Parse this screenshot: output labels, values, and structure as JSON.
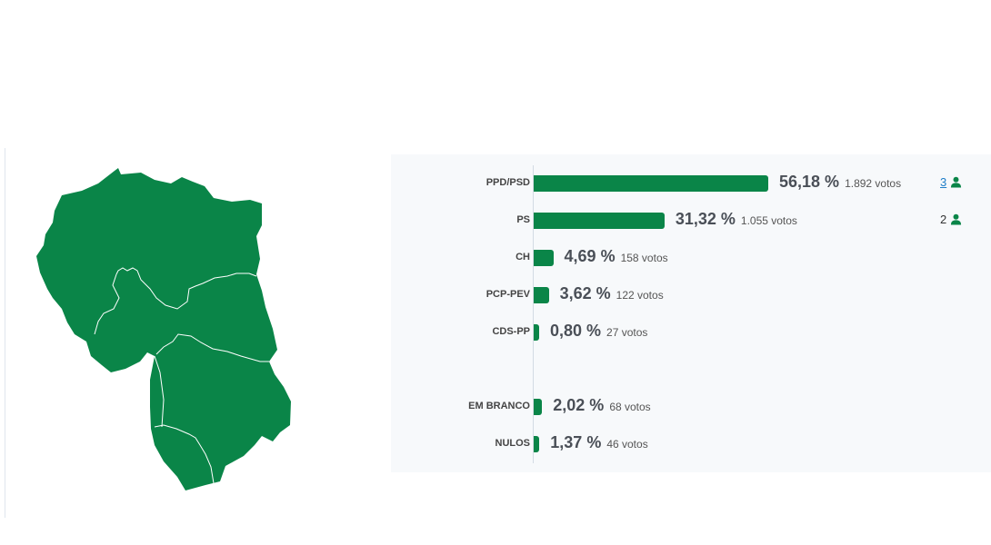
{
  "colors": {
    "bar": "#0a8548",
    "map_fill": "#0a8548",
    "map_border": "#ffffff",
    "panel_bg": "#f7f9fb",
    "link": "#1e7ec8"
  },
  "map": {
    "icon": "district-map",
    "fill": "#0a8548"
  },
  "chart_data": {
    "type": "bar",
    "orientation": "horizontal",
    "categories": [
      "PPD/PSD",
      "PS",
      "CH",
      "PCP-PEV",
      "CDS-PP",
      "EM BRANCO",
      "NULOS"
    ],
    "values": [
      56.18,
      31.32,
      4.69,
      3.62,
      0.8,
      2.02,
      1.37
    ],
    "votes": [
      1892,
      1055,
      158,
      122,
      27,
      68,
      46
    ],
    "rows": [
      {
        "party": "PPD/PSD",
        "pct": 56.18,
        "pct_label": "56,18 %",
        "votes_label": "1.892 votos",
        "seats": "3",
        "seats_link": true
      },
      {
        "party": "PS",
        "pct": 31.32,
        "pct_label": "31,32 %",
        "votes_label": "1.055 votos",
        "seats": "2",
        "seats_link": false
      },
      {
        "party": "CH",
        "pct": 4.69,
        "pct_label": "4,69 %",
        "votes_label": "158 votos",
        "seats": "",
        "seats_link": false
      },
      {
        "party": "PCP-PEV",
        "pct": 3.62,
        "pct_label": "3,62 %",
        "votes_label": "122 votos",
        "seats": "",
        "seats_link": false
      },
      {
        "party": "CDS-PP",
        "pct": 0.8,
        "pct_label": "0,80 %",
        "votes_label": "27 votos",
        "seats": "",
        "seats_link": false
      },
      {
        "party": "EM BRANCO",
        "pct": 2.02,
        "pct_label": "2,02 %",
        "votes_label": "68 votos",
        "seats": "",
        "seats_link": false
      },
      {
        "party": "NULOS",
        "pct": 1.37,
        "pct_label": "1,37 %",
        "votes_label": "46 votos",
        "seats": "",
        "seats_link": false
      }
    ],
    "grid": false,
    "legend": "none"
  }
}
